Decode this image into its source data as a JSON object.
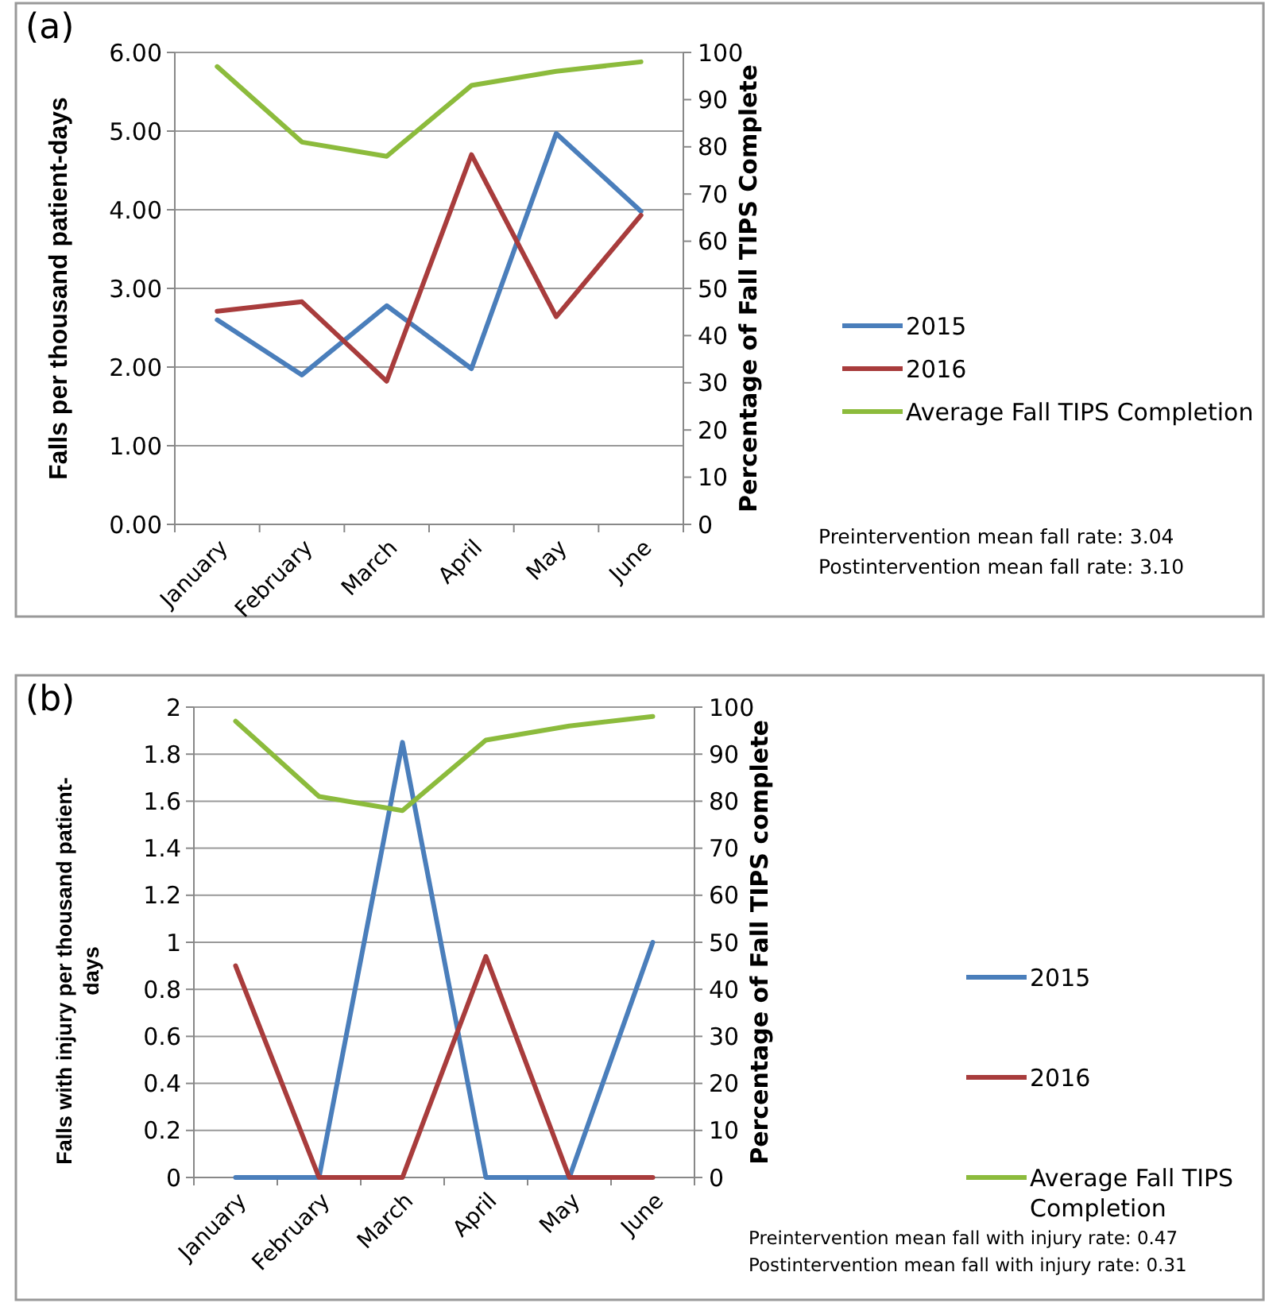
{
  "chart_data": [
    {
      "type": "line",
      "ylabel": "Falls per thousand patient-days",
      "y2label": "Percentage of Fall TIPS Complete",
      "categories": [
        "January",
        "February",
        "March",
        "April",
        "May",
        "June"
      ],
      "series": [
        {
          "name": "2015",
          "color": "#4a7ebb",
          "values": [
            2.6,
            1.9,
            2.78,
            1.98,
            4.97,
            3.98
          ]
        },
        {
          "name": "2016",
          "color": "#a83c3c",
          "values": [
            2.71,
            2.83,
            1.82,
            4.7,
            2.64,
            3.93
          ]
        },
        {
          "name": "Average Fall TIPS Completion",
          "color": "#8cbb3c",
          "axis": "y2",
          "values": [
            97,
            81,
            78,
            93,
            96,
            98
          ]
        }
      ],
      "ylim": [
        0,
        6
      ],
      "yticks": [
        {
          "value": 0,
          "label": "0.00"
        },
        {
          "value": 1,
          "label": "1.00"
        },
        {
          "value": 2,
          "label": "2.00"
        },
        {
          "value": 3,
          "label": "3.00"
        },
        {
          "value": 4,
          "label": "4.00"
        },
        {
          "value": 5,
          "label": "5.00"
        },
        {
          "value": 6,
          "label": "6.00"
        }
      ],
      "y2lim": [
        0,
        100
      ],
      "y2ticks": [
        0,
        10,
        20,
        30,
        40,
        50,
        60,
        70,
        80,
        90,
        100
      ],
      "grid": "y",
      "legend": "right",
      "annotations": [
        "(a)",
        "Preintervention mean fall rate: 3.04",
        "Postintervention mean fall rate: 3.10"
      ]
    },
    {
      "type": "line",
      "ylabel": "Falls with injury per thousand patient-days",
      "y2label": "Percentage of Fall TIPS complete",
      "categories": [
        "January",
        "February",
        "March",
        "April",
        "May",
        "June"
      ],
      "series": [
        {
          "name": "2015",
          "color": "#4a7ebb",
          "values": [
            0,
            0,
            1.85,
            0,
            0,
            1.0
          ]
        },
        {
          "name": "2016",
          "color": "#a83c3c",
          "values": [
            0.9,
            0,
            0,
            0.94,
            0,
            0
          ]
        },
        {
          "name": "Average Fall TIPS Completion",
          "color": "#8cbb3c",
          "axis": "y2",
          "values": [
            97,
            81,
            78,
            93,
            96,
            98
          ]
        }
      ],
      "ylim": [
        0,
        2
      ],
      "yticks": [
        0,
        0.2,
        0.4,
        0.6,
        0.8,
        1,
        1.2,
        1.4,
        1.6,
        1.8,
        2
      ],
      "y2lim": [
        0,
        100
      ],
      "y2ticks": [
        0,
        10,
        20,
        30,
        40,
        50,
        60,
        70,
        80,
        90,
        100
      ],
      "grid": "y",
      "legend": "right",
      "annotations": [
        "(b)",
        "Preintervention mean fall with injury rate: 0.47",
        "Postintervention mean fall with injury rate: 0.31"
      ]
    }
  ]
}
